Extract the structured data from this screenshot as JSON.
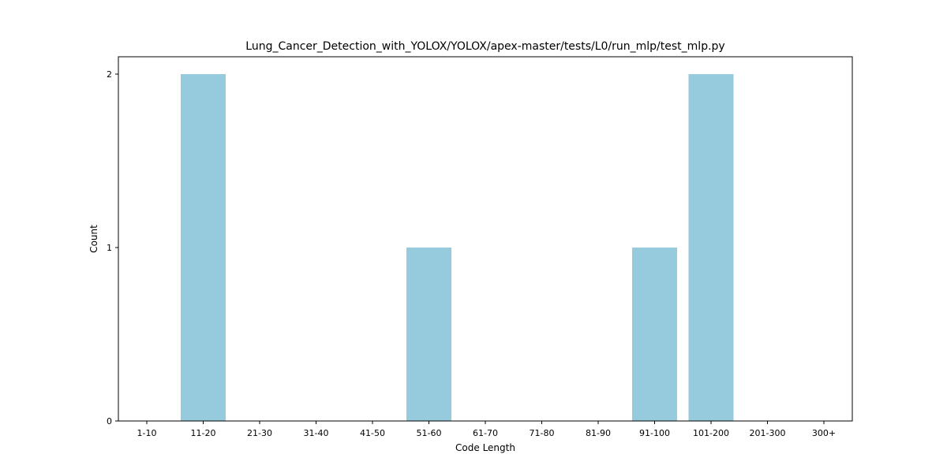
{
  "chart_data": {
    "type": "bar",
    "title": "Lung_Cancer_Detection_with_YOLOX/YOLOX/apex-master/tests/L0/run_mlp/test_mlp.py",
    "xlabel": "Code Length",
    "ylabel": "Count",
    "categories": [
      "1-10",
      "11-20",
      "21-30",
      "31-40",
      "41-50",
      "51-60",
      "61-70",
      "71-80",
      "81-90",
      "91-100",
      "101-200",
      "201-300",
      "300+"
    ],
    "values": [
      0,
      2,
      0,
      0,
      0,
      1,
      0,
      0,
      0,
      1,
      2,
      0,
      0
    ],
    "ylim": [
      0,
      2.1
    ],
    "yticks": [
      "0",
      "1",
      "2"
    ],
    "bar_color": "#96cadd",
    "grid": false,
    "legend": false
  }
}
